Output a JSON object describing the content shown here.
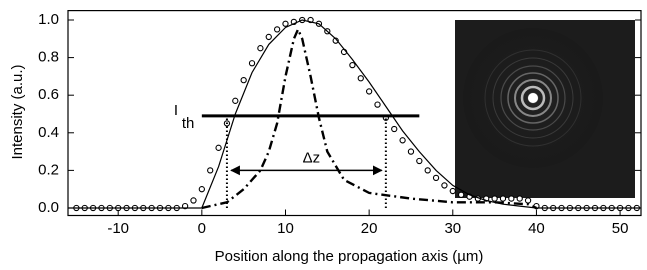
{
  "chart_data": {
    "type": "line",
    "x_label": "Position along the propagation axis (µm)",
    "y_label": "Intensity (a.u.)",
    "xlim": [
      -16,
      52.5
    ],
    "ylim": [
      -0.04,
      1.05
    ],
    "xticks": [
      -10,
      0,
      10,
      20,
      30,
      40,
      50
    ],
    "yticks": [
      {
        "value": 0,
        "label": "0.0"
      },
      {
        "value": 0.2,
        "label": "0.2"
      },
      {
        "value": 0.4,
        "label": "0.4"
      },
      {
        "value": 0.6,
        "label": "0.6"
      },
      {
        "value": 0.8,
        "label": "0.8"
      },
      {
        "value": 1.0,
        "label": "1.0"
      }
    ],
    "series": [
      {
        "style": "markers",
        "color": "#000000",
        "x": [
          -15,
          -14,
          -13,
          -12,
          -11,
          -10,
          -9,
          -8,
          -7,
          -6,
          -5,
          -4,
          -3,
          -2,
          -1,
          0,
          1,
          2,
          3,
          4,
          5,
          6,
          7,
          8,
          9,
          10,
          11,
          12,
          13,
          14,
          15,
          16,
          17,
          18,
          19,
          20,
          21,
          22,
          23,
          24,
          25,
          26,
          27,
          28,
          29,
          30,
          31,
          32,
          33,
          34,
          35,
          36,
          37,
          38,
          39,
          40,
          41,
          42,
          43,
          44,
          45,
          46,
          47,
          48,
          49,
          50,
          51,
          52
        ],
        "values": [
          0,
          0,
          0,
          0,
          0,
          0,
          0,
          0,
          0,
          0,
          0,
          0,
          0,
          0.01,
          0.04,
          0.1,
          0.2,
          0.32,
          0.45,
          0.57,
          0.68,
          0.77,
          0.85,
          0.91,
          0.95,
          0.98,
          0.99,
          1.0,
          1.0,
          0.98,
          0.94,
          0.89,
          0.83,
          0.76,
          0.69,
          0.62,
          0.55,
          0.48,
          0.42,
          0.36,
          0.3,
          0.25,
          0.2,
          0.16,
          0.12,
          0.09,
          0.07,
          0.06,
          0.05,
          0.05,
          0.05,
          0.05,
          0.05,
          0.05,
          0.04,
          0.01,
          0,
          0,
          0,
          0,
          0,
          0,
          0,
          0,
          0,
          0,
          0,
          0
        ]
      },
      {
        "style": "solid",
        "color": "#000000",
        "x": [
          -16,
          -2,
          0,
          2,
          4,
          6,
          8,
          10,
          12,
          14,
          16,
          18,
          20,
          22,
          24,
          26,
          28,
          30,
          32,
          34,
          36,
          38,
          40,
          52.5
        ],
        "values": [
          0,
          0,
          0,
          0.22,
          0.5,
          0.72,
          0.87,
          0.96,
          1.0,
          0.98,
          0.9,
          0.79,
          0.67,
          0.54,
          0.41,
          0.3,
          0.2,
          0.12,
          0.07,
          0.04,
          0.02,
          0.01,
          0,
          0
        ]
      },
      {
        "style": "dash-dot",
        "color": "#000000",
        "x": [
          0,
          3,
          5,
          7,
          8,
          9,
          10,
          11,
          11.5,
          12,
          13,
          14,
          15,
          17,
          20,
          25,
          30,
          35,
          39,
          40
        ],
        "values": [
          0,
          0.03,
          0.1,
          0.2,
          0.3,
          0.45,
          0.7,
          0.9,
          0.95,
          0.9,
          0.7,
          0.48,
          0.3,
          0.15,
          0.08,
          0.05,
          0.03,
          0.03,
          0.02,
          0
        ]
      }
    ],
    "threshold": {
      "label": "I",
      "subscript": "th",
      "y": 0.49,
      "x": [
        0,
        26
      ]
    },
    "markers": [
      3,
      22
    ],
    "arrow": {
      "label": "Δz",
      "x": [
        3.5,
        21.5
      ],
      "y": 0.2
    }
  }
}
